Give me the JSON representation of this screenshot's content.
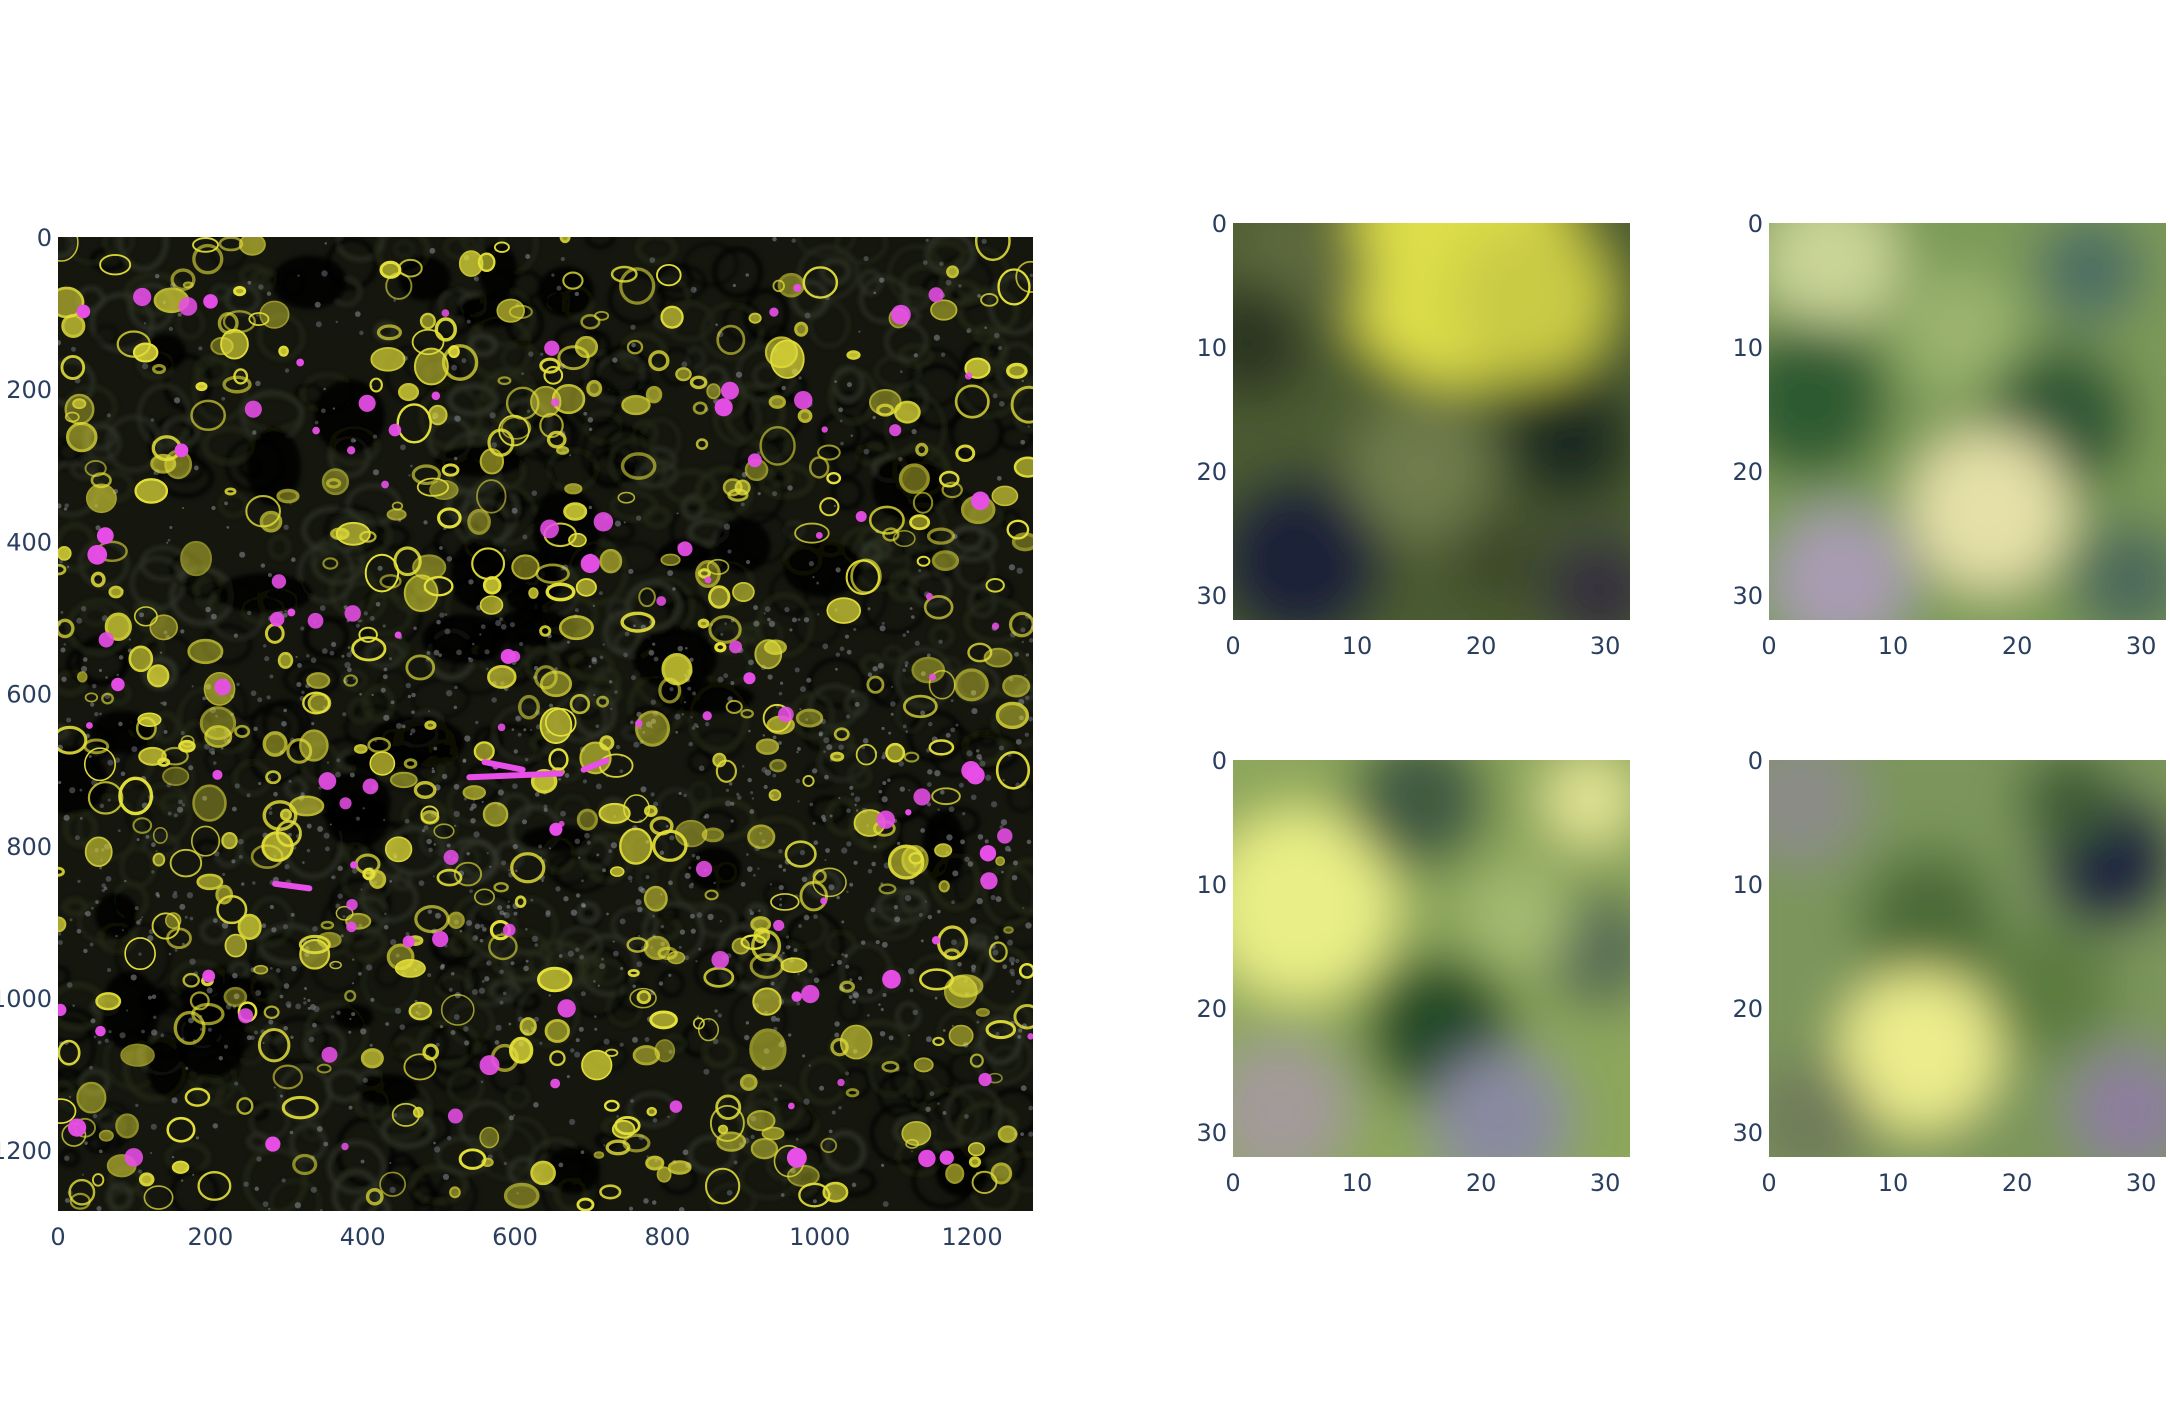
{
  "chart_data": [
    {
      "type": "heatmap",
      "panel": "main",
      "image": "fluorescence tissue micrograph, dark background with yellow and magenta stained structures",
      "x_range": [
        0,
        1280
      ],
      "y_range": [
        0,
        1280
      ],
      "y_reversed": true,
      "x_ticks": [
        0,
        200,
        400,
        600,
        800,
        1000,
        1200
      ],
      "y_ticks": [
        0,
        200,
        400,
        600,
        800,
        1000,
        1200
      ],
      "x_tick_labels": [
        "0",
        "200",
        "400",
        "600",
        "800",
        "1000",
        "1200"
      ],
      "y_tick_labels": [
        "0",
        "200",
        "400",
        "600",
        "800",
        "1000",
        "1200"
      ]
    },
    {
      "type": "heatmap",
      "panel": "patch-1",
      "image": "32x32 blurred patch, bright yellow top, dark lower-left",
      "x_range": [
        0,
        32
      ],
      "y_range": [
        0,
        32
      ],
      "y_reversed": true,
      "x_tick_labels": [
        "0",
        "10",
        "20",
        "30"
      ],
      "y_tick_labels": [
        "0",
        "10",
        "20",
        "30"
      ]
    },
    {
      "type": "heatmap",
      "panel": "patch-2",
      "image": "32x32 blurred patch, green with pale cream lower-center",
      "x_range": [
        0,
        32
      ],
      "y_range": [
        0,
        32
      ],
      "y_reversed": true,
      "x_tick_labels": [
        "0",
        "10",
        "20",
        "30"
      ],
      "y_tick_labels": [
        "0",
        "10",
        "20",
        "30"
      ]
    },
    {
      "type": "heatmap",
      "panel": "patch-3",
      "image": "32x32 blurred patch, yellow-green left, dark green center",
      "x_range": [
        0,
        32
      ],
      "y_range": [
        0,
        32
      ],
      "y_reversed": true,
      "x_tick_labels": [
        "0",
        "10",
        "20",
        "30"
      ],
      "y_tick_labels": [
        "0",
        "10",
        "20",
        "30"
      ]
    },
    {
      "type": "heatmap",
      "panel": "patch-4",
      "image": "32x32 blurred patch, muted green with yellow lower-left blob, dark navy top-right",
      "x_range": [
        0,
        32
      ],
      "y_range": [
        0,
        32
      ],
      "y_reversed": true,
      "x_tick_labels": [
        "0",
        "10",
        "20",
        "30"
      ],
      "y_tick_labels": [
        "0",
        "10",
        "20",
        "30"
      ]
    }
  ],
  "colors": {
    "tick_text": "#2a3f5f",
    "background": "#ffffff",
    "tissue_yellow": "#e6e23a",
    "tissue_magenta": "#e84ee8",
    "tissue_dark": "#14160e"
  }
}
